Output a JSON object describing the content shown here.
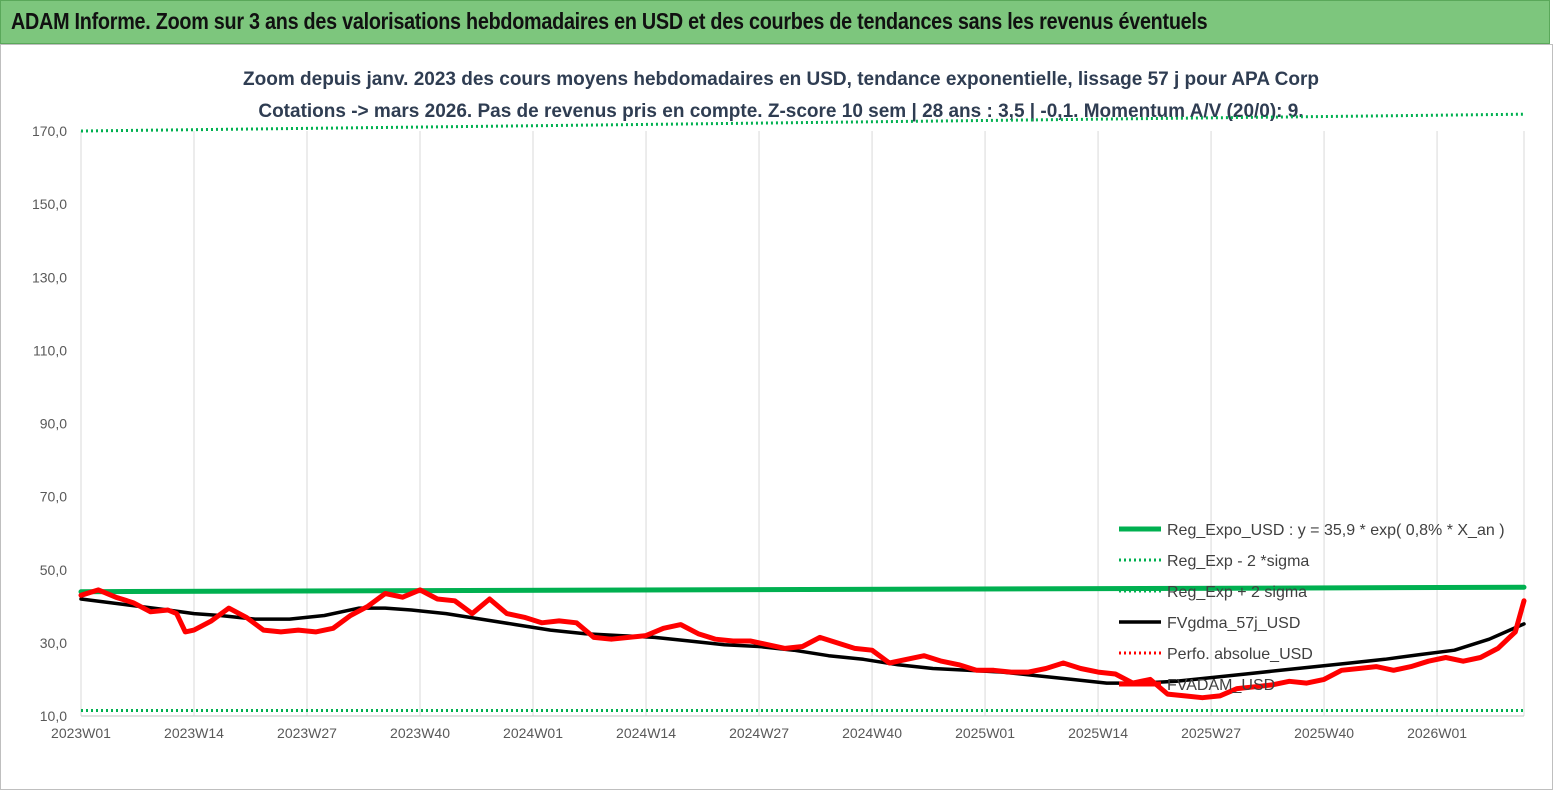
{
  "header": {
    "banner_title": "ADAM Informe. Zoom sur 3 ans des valorisations hebdomadaires en USD et des courbes de tendances sans les revenus éventuels"
  },
  "colors": {
    "banner_bg": "#7dc67d",
    "reg_expo": "#00b050",
    "sigma": "#00b050",
    "fvgdma": "#000000",
    "perfo": "#ff0000",
    "fvadam": "#ff0000"
  },
  "chart_data": {
    "type": "line",
    "title": "Zoom depuis janv. 2023 des cours moyens hebdomadaires en USD, tendance exponentielle, lissage 57 j pour APA Corp",
    "subtitle": "Cotations -> mars 2026. Pas de revenus pris en compte. Z-score 10 sem | 28 ans : 3,5 | -0,1. Momentum A/V (20/0): 9.",
    "xlabel": "",
    "ylabel": "",
    "ylim": [
      10,
      170
    ],
    "yticks": [
      "10,0",
      "30,0",
      "50,0",
      "70,0",
      "90,0",
      "110,0",
      "130,0",
      "150,0",
      "170,0"
    ],
    "ytick_values": [
      10,
      30,
      50,
      70,
      90,
      110,
      130,
      150,
      170
    ],
    "xlim": [
      0,
      166
    ],
    "xticks": [
      "2023W01",
      "2023W14",
      "2023W27",
      "2023W40",
      "2024W01",
      "2024W14",
      "2024W27",
      "2024W40",
      "2025W01",
      "2025W14",
      "2025W27",
      "2025W40",
      "2026W01"
    ],
    "xtick_values": [
      0,
      13,
      26,
      39,
      52,
      65,
      78,
      91,
      104,
      117,
      130,
      143,
      156
    ],
    "grid": "vertical",
    "legend_position": "bottom-right",
    "series": [
      {
        "name": "Reg_Expo_USD : y = 35,9 * exp( 0,8% *  X_an )",
        "style": "solid-thick",
        "color": "#00b050",
        "x": [
          0,
          166
        ],
        "y": [
          44.0,
          45.2
        ]
      },
      {
        "name": "Reg_Exp - 2 *sigma",
        "style": "dotted",
        "color": "#00b050",
        "x": [
          0,
          166
        ],
        "y": [
          11.5,
          11.5
        ]
      },
      {
        "name": "Reg_Exp + 2 sigma",
        "style": "dotted",
        "color": "#00b050",
        "x": [
          0,
          166
        ],
        "y": [
          170.0,
          174.6
        ]
      },
      {
        "name": "FVgdma_57j_USD",
        "style": "solid",
        "color": "#000000",
        "x": [
          0,
          5,
          10,
          13,
          16,
          20,
          24,
          28,
          32,
          35,
          38,
          42,
          46,
          50,
          54,
          58,
          62,
          66,
          70,
          74,
          78,
          82,
          86,
          90,
          94,
          98,
          102,
          106,
          110,
          114,
          118,
          122,
          126,
          130,
          134,
          138,
          142,
          146,
          150,
          154,
          158,
          162,
          166
        ],
        "y": [
          42.0,
          40.5,
          39.0,
          38.0,
          37.5,
          36.5,
          36.5,
          37.5,
          39.5,
          39.5,
          39.0,
          38.0,
          36.5,
          35.0,
          33.5,
          32.5,
          32.0,
          31.5,
          30.5,
          29.5,
          29.0,
          28.0,
          26.5,
          25.5,
          24.0,
          23.0,
          22.5,
          22.0,
          21.0,
          20.0,
          19.0,
          19.0,
          19.5,
          20.5,
          21.5,
          22.5,
          23.5,
          24.5,
          25.5,
          26.8,
          28.0,
          31.0,
          35.2
        ]
      },
      {
        "name": "Perfo. absolue_USD",
        "style": "dotted",
        "color": "#ff0000",
        "x": [],
        "y": []
      },
      {
        "name": "FVADAM_USD",
        "style": "solid-thick",
        "color": "#ff0000",
        "x": [
          0,
          2,
          4,
          6,
          8,
          10,
          11,
          12,
          13,
          15,
          17,
          19,
          21,
          23,
          25,
          27,
          29,
          31,
          33,
          35,
          37,
          39,
          41,
          43,
          45,
          47,
          49,
          51,
          53,
          55,
          57,
          59,
          61,
          63,
          65,
          67,
          69,
          71,
          73,
          75,
          77,
          79,
          81,
          83,
          85,
          87,
          89,
          91,
          93,
          95,
          97,
          99,
          101,
          103,
          105,
          107,
          109,
          111,
          113,
          115,
          117,
          119,
          121,
          123,
          125,
          127,
          129,
          131,
          133,
          135,
          137,
          139,
          141,
          143,
          145,
          147,
          149,
          151,
          153,
          155,
          157,
          159,
          161,
          163,
          165,
          166
        ],
        "y": [
          43.0,
          44.5,
          42.5,
          41.0,
          38.5,
          39.0,
          38.0,
          33.0,
          33.5,
          36.0,
          39.5,
          37.0,
          33.5,
          33.0,
          33.5,
          33.0,
          34.0,
          37.5,
          40.0,
          43.5,
          42.5,
          44.5,
          42.0,
          41.5,
          38.0,
          42.0,
          38.0,
          37.0,
          35.5,
          36.0,
          35.5,
          31.5,
          31.0,
          31.5,
          32.0,
          34.0,
          35.0,
          32.5,
          31.0,
          30.5,
          30.5,
          29.5,
          28.5,
          29.0,
          31.5,
          30.0,
          28.5,
          28.0,
          24.5,
          25.5,
          26.5,
          25.0,
          24.0,
          22.5,
          22.5,
          22.0,
          22.0,
          23.0,
          24.5,
          23.0,
          22.0,
          21.5,
          19.0,
          20.0,
          16.0,
          15.5,
          15.0,
          15.5,
          17.5,
          18.0,
          18.5,
          19.5,
          19.0,
          20.0,
          22.5,
          23.0,
          23.5,
          22.5,
          23.5,
          25.0,
          26.0,
          25.0,
          26.0,
          28.5,
          33.0,
          41.5
        ]
      }
    ]
  }
}
